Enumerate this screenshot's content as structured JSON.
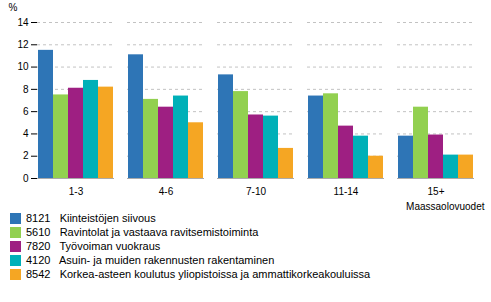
{
  "chart_data": {
    "type": "bar",
    "categories": [
      "1-3",
      "4-6",
      "7-10",
      "11-14",
      "15+"
    ],
    "series": [
      {
        "name": "8121   Kiinteistöjen siivous",
        "color": "#2e75b6",
        "values": [
          11.5,
          11.1,
          9.3,
          7.4,
          3.8
        ]
      },
      {
        "name": "5610   Ravintolat ja vastaava ravitsemistoiminta",
        "color": "#92d050",
        "values": [
          7.5,
          7.1,
          7.8,
          7.6,
          6.4
        ]
      },
      {
        "name": "7820   Työvoiman vuokraus",
        "color": "#9e1f82",
        "values": [
          8.1,
          6.4,
          5.7,
          4.7,
          3.9
        ]
      },
      {
        "name": "4120   Asuin- ja muiden rakennusten rakentaminen",
        "color": "#00b0b8",
        "values": [
          8.8,
          7.4,
          5.6,
          3.8,
          2.1
        ]
      },
      {
        "name": "8542   Korkea-asteen koulutus yliopistoissa ja ammattikorkeakouluissa",
        "color": "#f5a623",
        "values": [
          8.2,
          5.0,
          2.7,
          2.0,
          2.1
        ]
      }
    ],
    "ylabel": "%",
    "xlabel": "Maassaolovuodet",
    "ylim": [
      0,
      14
    ],
    "yticks": [
      0,
      2,
      4,
      6,
      8,
      10,
      12,
      14
    ],
    "grid": true
  }
}
